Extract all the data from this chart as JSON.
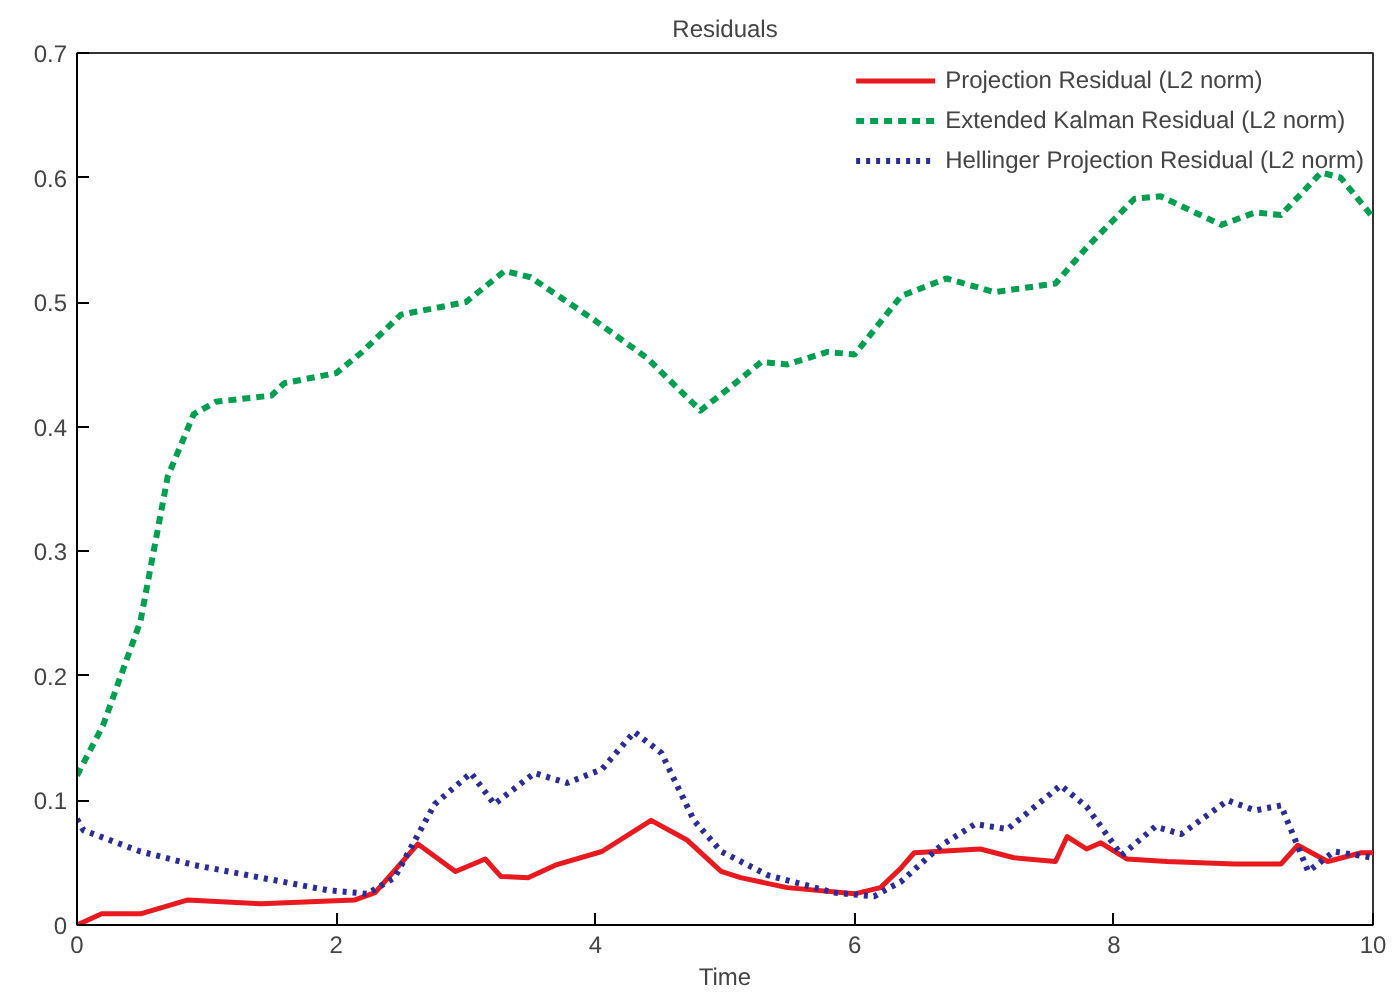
{
  "chart_data": {
    "type": "line",
    "title": "Residuals",
    "xlabel": "Time",
    "xlim": [
      0,
      10
    ],
    "ylim": [
      0,
      0.7
    ],
    "xticks": [
      0,
      2,
      4,
      6,
      8,
      10
    ],
    "yticks": [
      0,
      0.1,
      0.2,
      0.3,
      0.4,
      0.5,
      0.6,
      0.7
    ],
    "grid": false,
    "legend": "top right",
    "marker": "none",
    "series": [
      {
        "name": "Projection Residual (L2 norm)",
        "color": "#e8191f",
        "line_style": "solid",
        "x": [
          0,
          0.19,
          0.49,
          0.85,
          1.42,
          2.14,
          2.3,
          2.63,
          2.92,
          3.15,
          3.27,
          3.48,
          3.69,
          4.05,
          4.43,
          4.71,
          4.97,
          5.12,
          5.48,
          6.0,
          6.2,
          6.36,
          6.46,
          6.97,
          7.23,
          7.55,
          7.64,
          7.79,
          7.9,
          8.1,
          8.41,
          8.93,
          9.29,
          9.42,
          9.65,
          9.91,
          10
        ],
        "values": [
          0.0,
          0.009,
          0.009,
          0.02,
          0.017,
          0.02,
          0.026,
          0.065,
          0.043,
          0.053,
          0.039,
          0.038,
          0.048,
          0.059,
          0.084,
          0.068,
          0.043,
          0.038,
          0.03,
          0.025,
          0.03,
          0.046,
          0.058,
          0.061,
          0.054,
          0.051,
          0.071,
          0.061,
          0.066,
          0.053,
          0.051,
          0.049,
          0.049,
          0.064,
          0.051,
          0.058,
          0.058
        ]
      },
      {
        "name": "Extended Kalman Residual (L2 norm)",
        "color": "#00a050",
        "line_style": "dashed",
        "x": [
          0,
          0.2,
          0.49,
          0.7,
          0.9,
          1.07,
          1.5,
          1.6,
          2.0,
          2.2,
          2.5,
          3.0,
          3.3,
          3.5,
          4.0,
          4.4,
          4.81,
          5.02,
          5.28,
          5.48,
          5.79,
          6.0,
          6.36,
          6.71,
          7.08,
          7.55,
          7.8,
          8.16,
          8.36,
          8.83,
          9.09,
          9.29,
          9.6,
          9.75,
          10
        ],
        "values": [
          0.12,
          0.16,
          0.244,
          0.36,
          0.41,
          0.42,
          0.425,
          0.435,
          0.443,
          0.46,
          0.49,
          0.5,
          0.525,
          0.52,
          0.485,
          0.455,
          0.413,
          0.43,
          0.452,
          0.45,
          0.46,
          0.458,
          0.505,
          0.519,
          0.508,
          0.515,
          0.545,
          0.583,
          0.585,
          0.562,
          0.572,
          0.57,
          0.604,
          0.6,
          0.568
        ]
      },
      {
        "name": "Hellinger Projection Residual (L2 norm)",
        "color": "#2b2b9a",
        "line_style": "dotted",
        "x": [
          0,
          0.05,
          0.49,
          0.91,
          1.42,
          1.93,
          2.24,
          2.45,
          2.76,
          3.04,
          3.22,
          3.53,
          3.78,
          4.05,
          4.3,
          4.51,
          4.76,
          4.97,
          5.33,
          5.84,
          6.15,
          6.36,
          6.67,
          6.93,
          7.18,
          7.59,
          7.79,
          8.06,
          8.32,
          8.52,
          8.88,
          9.09,
          9.29,
          9.5,
          9.7,
          10
        ],
        "values": [
          0.085,
          0.076,
          0.059,
          0.048,
          0.038,
          0.028,
          0.025,
          0.038,
          0.097,
          0.122,
          0.097,
          0.122,
          0.114,
          0.125,
          0.155,
          0.138,
          0.084,
          0.059,
          0.04,
          0.026,
          0.023,
          0.035,
          0.064,
          0.081,
          0.077,
          0.112,
          0.095,
          0.056,
          0.079,
          0.073,
          0.1,
          0.092,
          0.096,
          0.043,
          0.059,
          0.054
        ]
      }
    ]
  }
}
